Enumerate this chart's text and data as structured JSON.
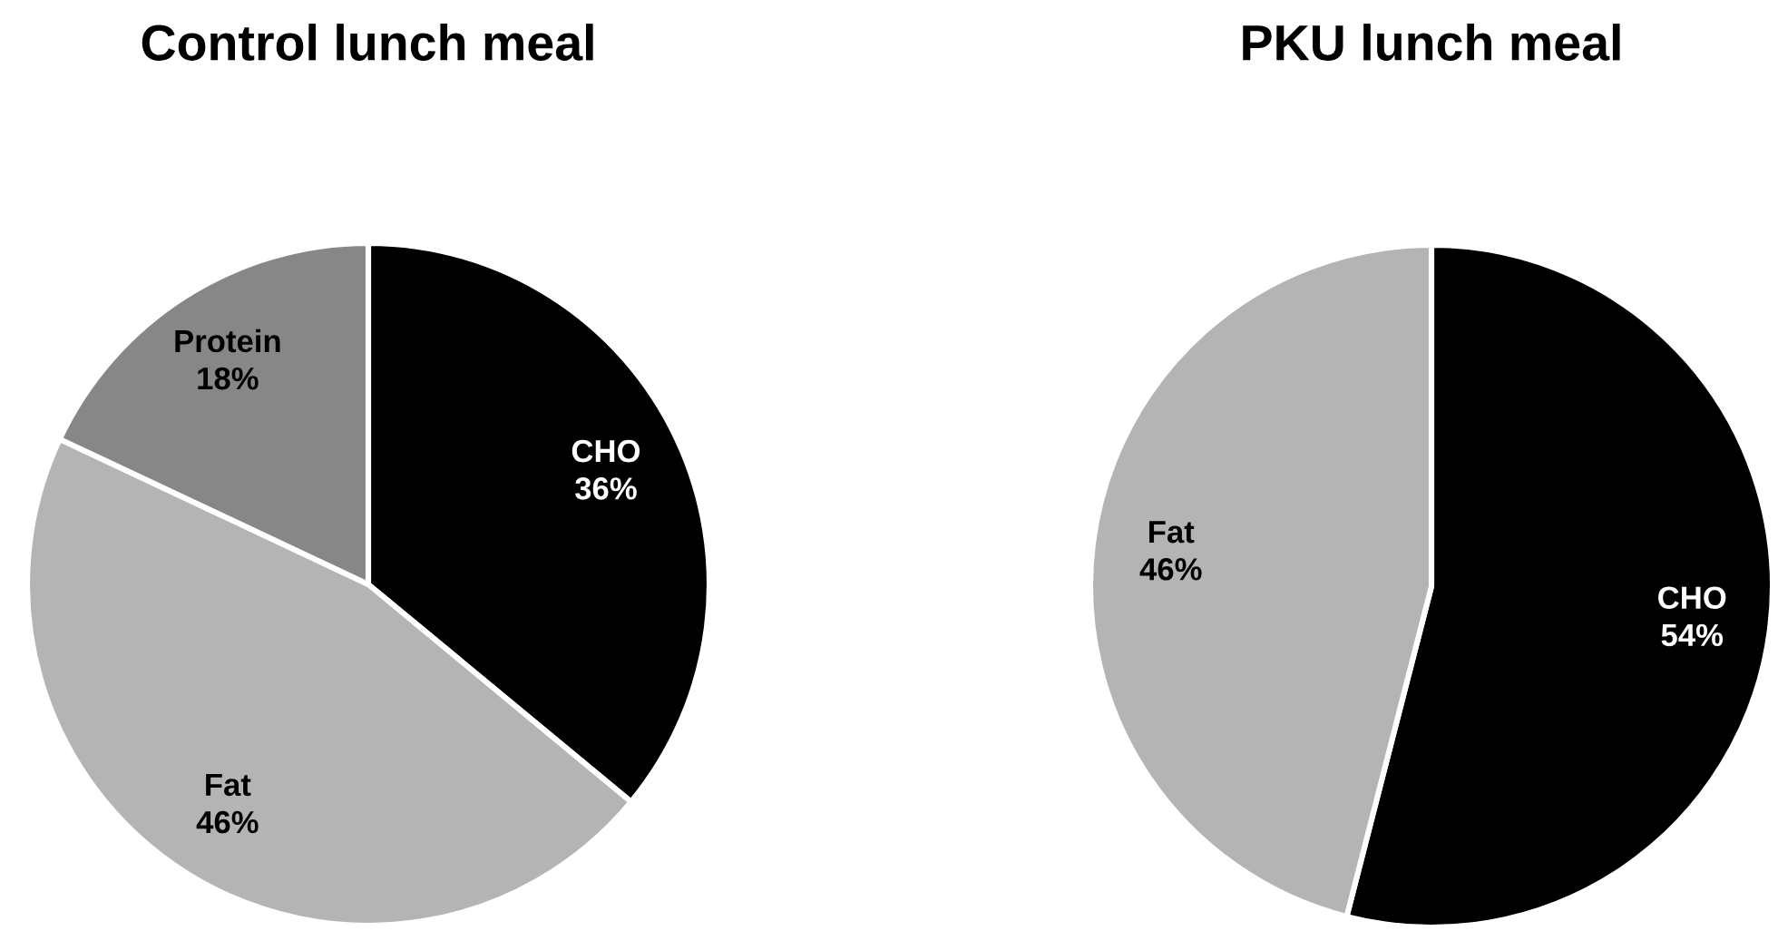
{
  "chart_data": [
    {
      "type": "pie",
      "title": "Control lunch meal",
      "categories": [
        "CHO",
        "Fat",
        "Protein"
      ],
      "values": [
        36,
        46,
        18
      ],
      "value_labels": [
        "36%",
        "46%",
        "18%"
      ],
      "colors": [
        "#000000",
        "#b4b4b4",
        "#878787"
      ]
    },
    {
      "type": "pie",
      "title": "PKU lunch meal",
      "categories": [
        "CHO",
        "Fat"
      ],
      "values": [
        54,
        46
      ],
      "value_labels": [
        "54%",
        "46%"
      ],
      "colors": [
        "#000000",
        "#b4b4b4"
      ]
    }
  ]
}
